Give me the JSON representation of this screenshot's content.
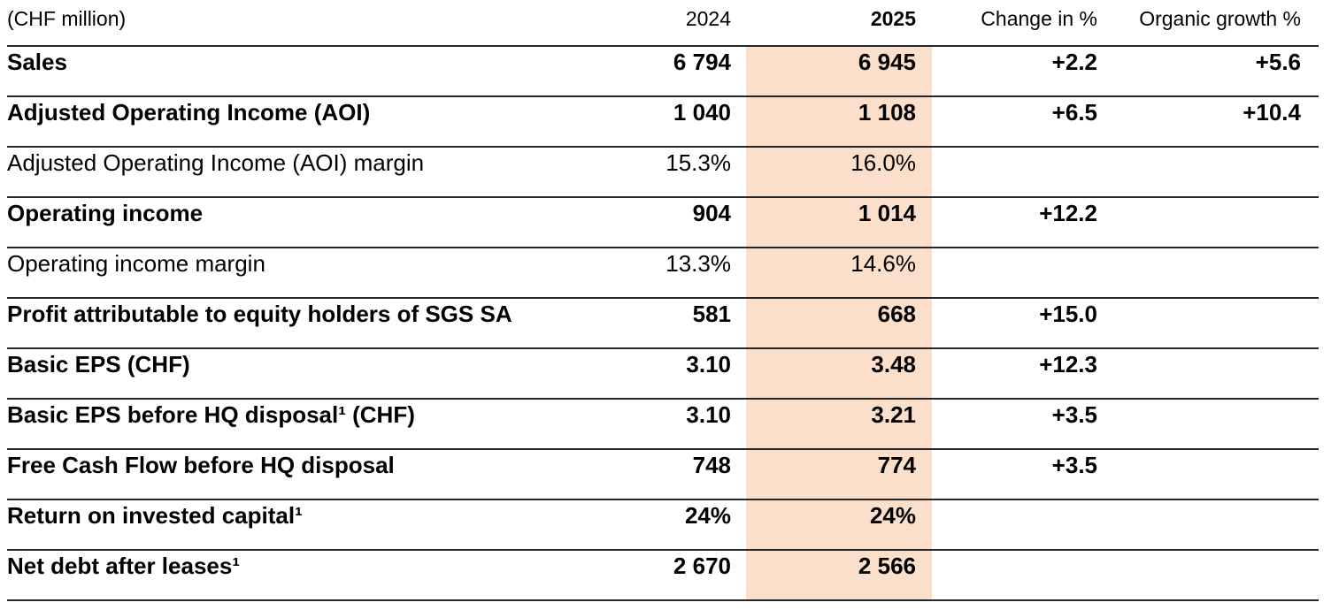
{
  "unit_label": "(CHF million)",
  "columns": {
    "year_prev": "2024",
    "year_curr": "2025",
    "change": "Change in %",
    "organic": "Organic growth %"
  },
  "highlight_color": "#fbdfca",
  "rows": [
    {
      "label": "Sales",
      "v2024": "6 794",
      "v2025": "6 945",
      "change": "+2.2",
      "organic": "+5.6"
    },
    {
      "label": "Adjusted Operating Income (AOI)",
      "v2024": "1 040",
      "v2025": "1 108",
      "change": "+6.5",
      "organic": "+10.4"
    },
    {
      "label": "Adjusted Operating Income (AOI) margin",
      "v2024": "15.3%",
      "v2025": "16.0%",
      "change": "",
      "organic": ""
    },
    {
      "label": "Operating income",
      "v2024": "904",
      "v2025": "1 014",
      "change": "+12.2",
      "organic": ""
    },
    {
      "label": "Operating income margin",
      "v2024": "13.3%",
      "v2025": "14.6%",
      "change": "",
      "organic": ""
    },
    {
      "label": "Profit attributable to equity holders of SGS SA",
      "v2024": "581",
      "v2025": "668",
      "change": "+15.0",
      "organic": ""
    },
    {
      "label": "Basic EPS (CHF)",
      "v2024": "3.10",
      "v2025": "3.48",
      "change": "+12.3",
      "organic": ""
    },
    {
      "label": "Basic EPS before HQ disposal¹ (CHF)",
      "v2024": "3.10",
      "v2025": "3.21",
      "change": "+3.5",
      "organic": ""
    },
    {
      "label": "Free Cash Flow before HQ disposal",
      "v2024": "748",
      "v2025": "774",
      "change": "+3.5",
      "organic": ""
    },
    {
      "label": "Return on invested capital¹",
      "v2024": "24%",
      "v2025": "24%",
      "change": "",
      "organic": ""
    },
    {
      "label": "Net debt after leases¹",
      "v2024": "2 670",
      "v2025": "2 566",
      "change": "",
      "organic": ""
    }
  ]
}
